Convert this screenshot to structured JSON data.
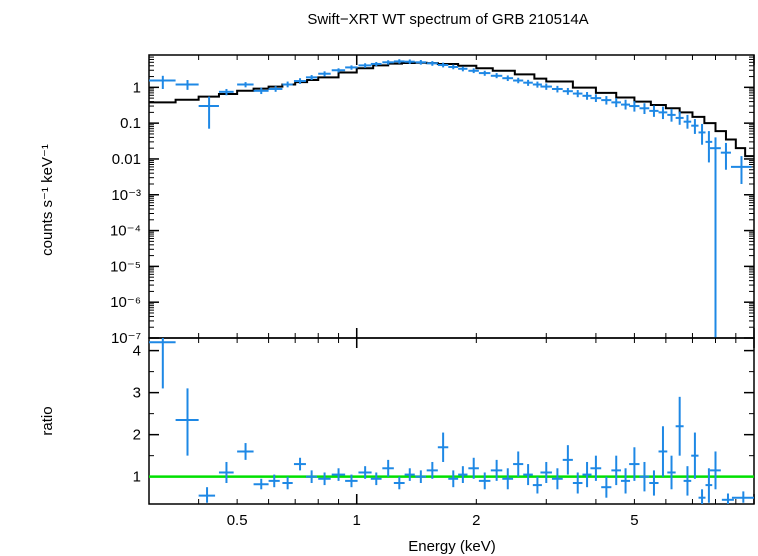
{
  "chart_data": [
    {
      "type": "scatter",
      "title": "Swift−XRT WT spectrum of GRB 210514A",
      "xlabel": "",
      "ylabel": "counts s⁻¹ keV⁻¹",
      "xscale": "log",
      "yscale": "log",
      "xlim": [
        0.3,
        10
      ],
      "ylim": [
        1e-07,
        8
      ],
      "y_tick_labels": [
        "1",
        "0.1",
        "0.01",
        "10⁻³",
        "10⁻⁴",
        "10⁻⁵",
        "10⁻⁶",
        "10⁻⁷"
      ],
      "y_tick_values": [
        1,
        0.1,
        0.01,
        0.001,
        0.0001,
        1e-05,
        1e-06,
        1e-07
      ],
      "colors": {
        "data": "#1e88e5",
        "model": "#000000"
      },
      "series": [
        {
          "kind": "data",
          "x": [
            0.325,
            0.375,
            0.425,
            0.47,
            0.525,
            0.575,
            0.625,
            0.67,
            0.72,
            0.77,
            0.83,
            0.9,
            0.97,
            1.05,
            1.12,
            1.2,
            1.28,
            1.36,
            1.45,
            1.55,
            1.65,
            1.75,
            1.85,
            1.97,
            2.1,
            2.25,
            2.4,
            2.55,
            2.7,
            2.85,
            3.0,
            3.2,
            3.4,
            3.6,
            3.8,
            4.0,
            4.25,
            4.5,
            4.75,
            5.0,
            5.3,
            5.6,
            5.9,
            6.2,
            6.5,
            6.8,
            7.1,
            7.4,
            7.7,
            8.0,
            8.5,
            9.3
          ],
          "y": [
            1.55,
            1.2,
            0.3,
            0.75,
            1.2,
            0.8,
            0.9,
            1.2,
            1.5,
            1.9,
            2.4,
            3.0,
            3.6,
            4.1,
            4.5,
            5.0,
            5.3,
            5.2,
            5.0,
            4.7,
            4.2,
            3.7,
            3.3,
            2.9,
            2.5,
            2.1,
            1.8,
            1.55,
            1.35,
            1.2,
            1.05,
            0.9,
            0.78,
            0.67,
            0.58,
            0.5,
            0.44,
            0.38,
            0.33,
            0.3,
            0.26,
            0.22,
            0.2,
            0.17,
            0.14,
            0.11,
            0.085,
            0.055,
            0.03,
            0.02,
            0.015,
            0.006
          ],
          "xerr": [
            0.025,
            0.025,
            0.025,
            0.02,
            0.025,
            0.025,
            0.025,
            0.02,
            0.025,
            0.025,
            0.03,
            0.035,
            0.035,
            0.04,
            0.035,
            0.04,
            0.04,
            0.04,
            0.045,
            0.05,
            0.05,
            0.05,
            0.05,
            0.06,
            0.07,
            0.075,
            0.075,
            0.075,
            0.075,
            0.075,
            0.1,
            0.1,
            0.1,
            0.1,
            0.1,
            0.125,
            0.125,
            0.125,
            0.125,
            0.15,
            0.15,
            0.15,
            0.15,
            0.15,
            0.15,
            0.15,
            0.15,
            0.15,
            0.15,
            0.25,
            0.25,
            0.55
          ],
          "ylo": [
            0.9,
            0.85,
            0.07,
            0.6,
            1.0,
            0.65,
            0.75,
            1.0,
            1.25,
            1.6,
            2.0,
            2.6,
            3.1,
            3.5,
            3.9,
            4.3,
            4.6,
            4.5,
            4.3,
            4.0,
            3.6,
            3.2,
            2.8,
            2.5,
            2.1,
            1.8,
            1.5,
            1.3,
            1.1,
            0.98,
            0.85,
            0.72,
            0.62,
            0.53,
            0.45,
            0.39,
            0.33,
            0.28,
            0.24,
            0.21,
            0.18,
            0.15,
            0.13,
            0.11,
            0.09,
            0.07,
            0.05,
            0.025,
            0.008,
            1e-07,
            0.005,
            0.002
          ],
          "yhi": [
            2.1,
            1.6,
            0.55,
            0.9,
            1.4,
            0.98,
            1.08,
            1.45,
            1.8,
            2.2,
            2.8,
            3.4,
            4.1,
            4.7,
            5.1,
            5.7,
            6.1,
            6.0,
            5.8,
            5.4,
            4.9,
            4.3,
            3.8,
            3.4,
            2.9,
            2.5,
            2.15,
            1.85,
            1.62,
            1.45,
            1.28,
            1.1,
            0.96,
            0.84,
            0.74,
            0.64,
            0.57,
            0.5,
            0.45,
            0.41,
            0.36,
            0.31,
            0.29,
            0.25,
            0.21,
            0.17,
            0.13,
            0.095,
            0.06,
            0.04,
            0.028,
            0.012
          ]
        },
        {
          "kind": "model",
          "x": [
            0.3,
            0.35,
            0.4,
            0.45,
            0.5,
            0.55,
            0.6,
            0.65,
            0.7,
            0.75,
            0.8,
            0.9,
            1.0,
            1.1,
            1.2,
            1.3,
            1.4,
            1.5,
            1.6,
            1.8,
            2.0,
            2.2,
            2.5,
            2.8,
            3.0,
            3.5,
            4.0,
            4.5,
            5.0,
            5.5,
            6.0,
            6.5,
            7.0,
            7.5,
            8.0,
            8.5,
            9.0,
            9.5,
            10.0
          ],
          "y": [
            0.38,
            0.45,
            0.55,
            0.65,
            0.8,
            0.92,
            1.05,
            1.2,
            1.4,
            1.6,
            1.9,
            2.6,
            3.4,
            4.1,
            4.6,
            4.8,
            4.85,
            4.75,
            4.5,
            4.0,
            3.4,
            2.9,
            2.3,
            1.75,
            1.45,
            0.98,
            0.7,
            0.52,
            0.4,
            0.32,
            0.26,
            0.2,
            0.15,
            0.1,
            0.06,
            0.035,
            0.02,
            0.012,
            0.012
          ]
        }
      ]
    },
    {
      "type": "scatter",
      "title": "",
      "xlabel": "Energy (keV)",
      "ylabel": "ratio",
      "xscale": "log",
      "xlim": [
        0.3,
        10
      ],
      "ylim": [
        0.35,
        4.3
      ],
      "x_tick_labels": [
        "0.5",
        "1",
        "2",
        "5"
      ],
      "x_tick_values": [
        0.5,
        1,
        2,
        5
      ],
      "y_tick_labels": [
        "1",
        "2",
        "3",
        "4"
      ],
      "y_tick_values": [
        1,
        2,
        3,
        4
      ],
      "reference_line": 1,
      "colors": {
        "data": "#1e88e5",
        "reference": "#00e000"
      },
      "series": [
        {
          "kind": "ratio",
          "x": [
            0.325,
            0.375,
            0.42,
            0.47,
            0.525,
            0.575,
            0.62,
            0.67,
            0.72,
            0.77,
            0.83,
            0.9,
            0.97,
            1.05,
            1.12,
            1.2,
            1.28,
            1.36,
            1.45,
            1.55,
            1.65,
            1.75,
            1.85,
            1.97,
            2.1,
            2.25,
            2.4,
            2.55,
            2.7,
            2.85,
            3.0,
            3.2,
            3.4,
            3.6,
            3.8,
            4.0,
            4.25,
            4.5,
            4.75,
            5.0,
            5.3,
            5.6,
            5.9,
            6.2,
            6.5,
            6.8,
            7.1,
            7.4,
            7.7,
            8.0,
            8.6,
            9.4
          ],
          "y": [
            4.2,
            2.35,
            0.55,
            1.1,
            1.6,
            0.82,
            0.9,
            0.85,
            1.3,
            1.0,
            0.95,
            1.05,
            0.9,
            1.1,
            0.95,
            1.2,
            0.85,
            1.05,
            1.0,
            1.15,
            1.7,
            0.95,
            1.05,
            1.2,
            0.9,
            1.15,
            0.95,
            1.3,
            1.05,
            0.8,
            1.1,
            0.95,
            1.4,
            0.85,
            1.05,
            1.2,
            0.75,
            1.15,
            0.9,
            1.3,
            1.0,
            0.85,
            1.6,
            1.1,
            2.2,
            0.9,
            1.5,
            0.5,
            0.8,
            1.15,
            0.45,
            0.5
          ],
          "xerr": [
            0.025,
            0.025,
            0.02,
            0.02,
            0.025,
            0.025,
            0.02,
            0.02,
            0.025,
            0.025,
            0.03,
            0.035,
            0.035,
            0.04,
            0.035,
            0.04,
            0.04,
            0.04,
            0.045,
            0.05,
            0.05,
            0.05,
            0.05,
            0.06,
            0.07,
            0.075,
            0.075,
            0.075,
            0.075,
            0.075,
            0.1,
            0.1,
            0.1,
            0.1,
            0.1,
            0.125,
            0.125,
            0.125,
            0.125,
            0.15,
            0.15,
            0.15,
            0.15,
            0.15,
            0.15,
            0.15,
            0.15,
            0.15,
            0.15,
            0.25,
            0.3,
            0.6
          ],
          "ylo": [
            3.1,
            1.5,
            0.38,
            0.85,
            1.4,
            0.7,
            0.75,
            0.7,
            1.15,
            0.85,
            0.8,
            0.9,
            0.75,
            0.95,
            0.8,
            1.0,
            0.7,
            0.9,
            0.85,
            0.95,
            1.35,
            0.75,
            0.85,
            0.95,
            0.7,
            0.9,
            0.7,
            1.0,
            0.8,
            0.6,
            0.85,
            0.7,
            1.05,
            0.6,
            0.75,
            0.9,
            0.5,
            0.8,
            0.6,
            0.9,
            0.65,
            0.55,
            1.0,
            0.7,
            1.5,
            0.55,
            0.95,
            0.35,
            0.38,
            0.7,
            0.35,
            0.38
          ],
          "yhi": [
            4.3,
            3.1,
            0.75,
            1.35,
            1.8,
            0.95,
            1.05,
            1.0,
            1.45,
            1.15,
            1.1,
            1.2,
            1.05,
            1.25,
            1.1,
            1.4,
            1.0,
            1.2,
            1.15,
            1.35,
            2.05,
            1.15,
            1.25,
            1.45,
            1.1,
            1.4,
            1.2,
            1.6,
            1.3,
            1.0,
            1.35,
            1.2,
            1.75,
            1.1,
            1.35,
            1.5,
            1.0,
            1.5,
            1.2,
            1.7,
            1.35,
            1.15,
            2.2,
            1.5,
            2.9,
            1.25,
            2.05,
            0.7,
            1.2,
            1.6,
            0.6,
            0.65
          ]
        }
      ]
    }
  ]
}
